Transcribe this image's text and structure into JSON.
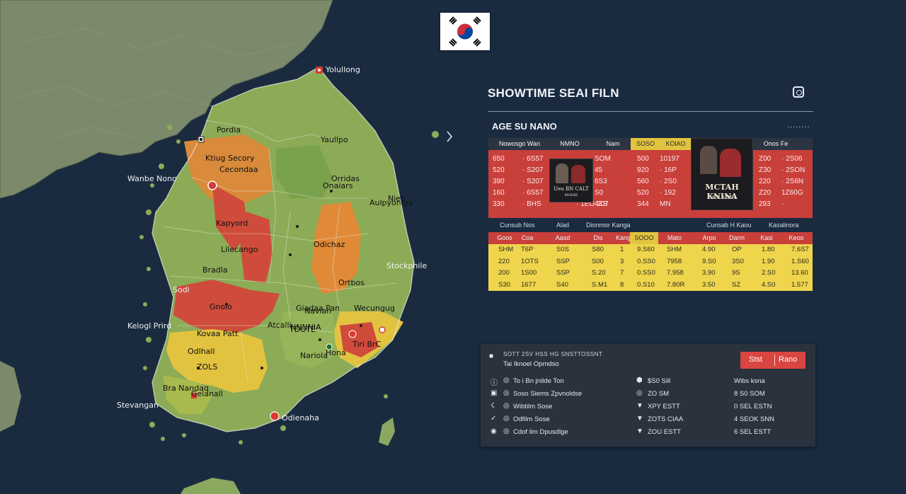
{
  "map": {
    "labels": [
      {
        "text": "Yolullong",
        "style": "dark"
      },
      {
        "text": "Pordia",
        "style": "map"
      },
      {
        "text": "Yaullpo",
        "style": "map"
      },
      {
        "text": "Ktiug Secory",
        "style": "map"
      },
      {
        "text": "Cecondaa",
        "style": "map"
      },
      {
        "text": "Wanbe Nono",
        "style": "dark"
      },
      {
        "text": "Orridas",
        "style": "map"
      },
      {
        "text": "Aulpyoniga",
        "style": "map"
      },
      {
        "text": "Nieb",
        "style": "map"
      },
      {
        "text": "Onaiars",
        "style": "map"
      },
      {
        "text": "Kapyord",
        "style": "map"
      },
      {
        "text": "Odichaz",
        "style": "map"
      },
      {
        "text": "Lilecango",
        "style": "map"
      },
      {
        "text": "Stockphile",
        "style": "dark"
      },
      {
        "text": "Bradla",
        "style": "map"
      },
      {
        "text": "Sodi",
        "style": "dark"
      },
      {
        "text": "Ortbos",
        "style": "map"
      },
      {
        "text": "Gnolo",
        "style": "map"
      },
      {
        "text": "Giadaa Pan",
        "style": "map"
      },
      {
        "text": "Wecungug",
        "style": "map"
      },
      {
        "text": "Kelogl Prird",
        "style": "dark"
      },
      {
        "text": "Atcalli",
        "style": "map"
      },
      {
        "text": "Kovaa Patt",
        "style": "map"
      },
      {
        "text": "Nariola",
        "style": "map"
      },
      {
        "text": "TDUTE",
        "style": "map"
      },
      {
        "text": "Odlhall",
        "style": "map"
      },
      {
        "text": "ZOLS",
        "style": "map"
      },
      {
        "text": "Bra Nandaq",
        "style": "map"
      },
      {
        "text": "Stevangan",
        "style": "dark"
      },
      {
        "text": "Odienaha",
        "style": "dark"
      },
      {
        "text": "Gelanall",
        "style": "map"
      },
      {
        "text": "Hona",
        "style": "map"
      },
      {
        "text": "Tiri BrC",
        "style": "map"
      },
      {
        "text": "Navian",
        "style": "map"
      },
      {
        "text": "NNNNIA",
        "style": "map"
      }
    ]
  },
  "flag": {
    "name": "south-korea-flag",
    "colors": {
      "red": "#cd2e3a",
      "blue": "#0047a0",
      "black": "#000000"
    }
  },
  "panel": {
    "title": "SHOWTIME SEAI FILN",
    "subtitle": "AGE SU NANO",
    "more": "........",
    "instagram_icon": "instagram-icon"
  },
  "red_table": {
    "headers": [
      "Nowosgo Wan",
      "NMNO",
      "Nam",
      "SOSO",
      "KOlAO",
      "Onos Fe"
    ],
    "rows": [
      [
        "650",
        "· 6S57",
        "SOM",
        "500",
        "10197",
        "Z00",
        "· 2S06"
      ],
      [
        "520",
        "· S207",
        "45",
        "920",
        "· 16P",
        "Z30",
        "· 2SON"
      ],
      [
        "390",
        "· S207",
        "6S3",
        "560",
        "· 2S0",
        "220",
        "· 2S6N"
      ],
      [
        "160",
        "· 6S57",
        "S0",
        "520",
        "· 192",
        "Z20",
        "1Z60G"
      ],
      [
        "330",
        "· BHS",
        "4ZS",
        "344",
        "MN",
        "293",
        "·"
      ]
    ],
    "row5_extra": "· 1EO 207",
    "poster1": {
      "title": "Ueu BN CALT",
      "sub": "MOGIE"
    },
    "poster2": {
      "title": "MCTAH KNINA",
      "sub": "GALL SAMH"
    }
  },
  "below_row": [
    "Cunsub Nos",
    "Alad",
    "Dionmor Kanga",
    "Cunsab H Kaou",
    "Kasalinora"
  ],
  "yellow_table": {
    "headers": [
      "Goos",
      "Coa",
      "Aasd",
      "",
      "Dis",
      "Kanga",
      "SOOO",
      "Mato",
      "Arpo",
      "Darm",
      "Kasi",
      "Keoo"
    ],
    "rows": [
      [
        "SHM",
        "T6P",
        "S0S",
        "S80",
        "1",
        "9.S60",
        "SHM",
        "4.90",
        "OP",
        "1.80",
        "7.6S7"
      ],
      [
        "220",
        "1OTS",
        "SSP",
        "S00",
        "3",
        "0.SS0",
        "7958",
        "9.S0",
        "3S0",
        "1.90",
        "1.S60"
      ],
      [
        "200",
        "1S00",
        "SSP",
        "S.20",
        "7",
        "0.SS0",
        "7.958",
        "3.90",
        "9S",
        "2.S0",
        "13.60"
      ],
      [
        "S30",
        "1677",
        "S40",
        "S.M1",
        "8",
        "0.S10",
        "7.80R",
        "3.50",
        "SZ",
        "4.S0",
        "1.577"
      ]
    ]
  },
  "bottom_panel": {
    "small_header": "SOTT 2SV HSS HG SNSTTOSSNT",
    "heading": "Tai Iknoel Opmdso",
    "button_left": "Stst",
    "button_right": "Rano",
    "left_items": [
      {
        "icon": "info-icon",
        "label": "To i Bn jnilde Ton"
      },
      {
        "icon": "grid-icon",
        "label": "Soso Siems Zpvnoldse"
      },
      {
        "icon": "bolt-icon",
        "label": "Wibtilm Sose"
      },
      {
        "icon": "check-icon",
        "label": "Odfilm Sose"
      },
      {
        "icon": "dot-icon",
        "label": "Cdof lim Dpusdlge"
      }
    ],
    "mid_items": [
      "$S0 Sill",
      "ZO SM",
      "XPY ESTT",
      "ZOTS CIAA",
      "ZOU ESTT"
    ],
    "right_items": [
      "Wibs ksna",
      "8 S0 SOM",
      "0 SEL ESTN",
      "4 SEOK SNN",
      "6 SEL ESTT"
    ]
  }
}
